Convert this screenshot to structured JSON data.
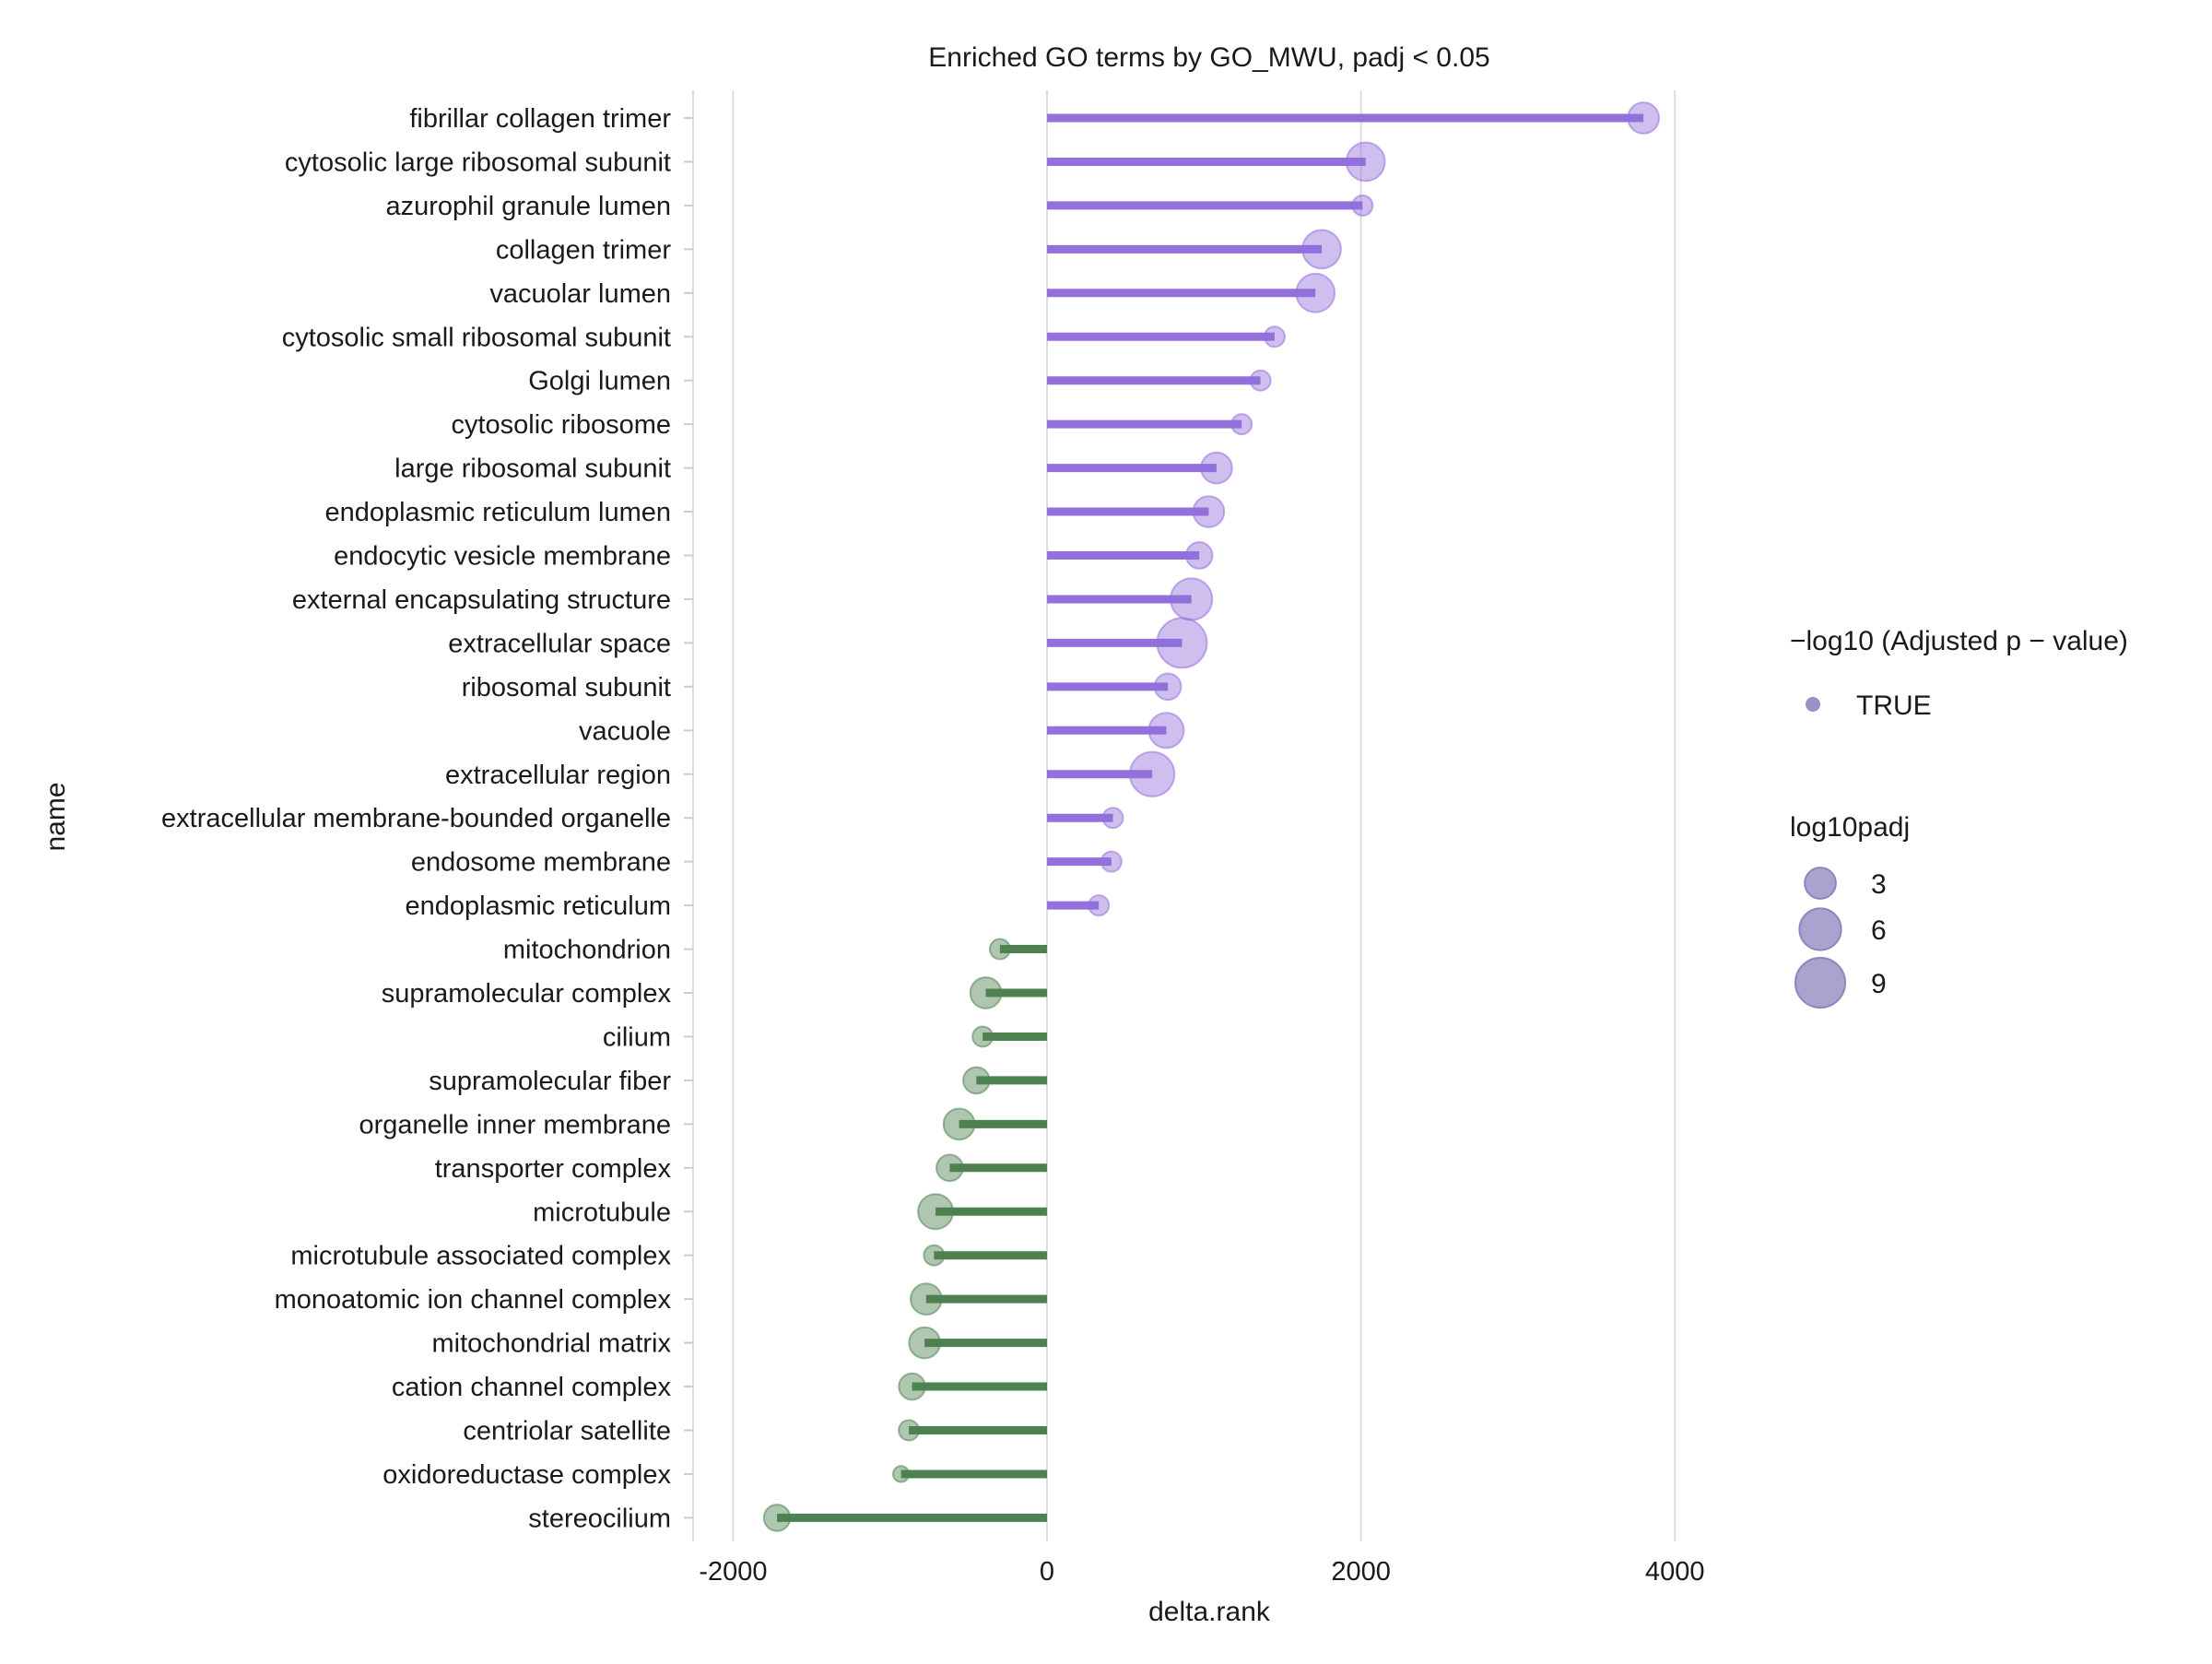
{
  "chart_data": {
    "type": "lollipop",
    "title": "Enriched GO terms by GO_MWU, padj < 0.05",
    "xlabel": "delta.rank",
    "ylabel": "name",
    "xlim": [
      -2000,
      4000
    ],
    "x_ticks": [
      -2000,
      0,
      2000,
      4000
    ],
    "x_tick_labels": [
      "-2000",
      "0",
      "2000",
      "4000"
    ],
    "grid": "vertical major lines",
    "legend_position": "right",
    "colors": {
      "positive": "#9370DB",
      "negative": "#4E8150",
      "legend_point": "#8B86BD",
      "grid": "#DCDCDC"
    },
    "legends": [
      {
        "title": "−log10 (Adjusted p − value)",
        "entries": [
          "TRUE"
        ]
      },
      {
        "title": "log10padj",
        "entries": [
          {
            "label": "3",
            "value": 3
          },
          {
            "label": "6",
            "value": 6
          },
          {
            "label": "9",
            "value": 9
          }
        ]
      }
    ],
    "categories": [
      "fibrillar collagen trimer",
      "cytosolic large ribosomal subunit",
      "azurophil granule lumen",
      "collagen trimer",
      "vacuolar lumen",
      "cytosolic small ribosomal subunit",
      "Golgi lumen",
      "cytosolic ribosome",
      "large ribosomal subunit",
      "endoplasmic reticulum lumen",
      "endocytic vesicle membrane",
      "external encapsulating structure",
      "extracellular space",
      "ribosomal subunit",
      "vacuole",
      "extracellular region",
      "extracellular membrane-bounded organelle",
      "endosome membrane",
      "endoplasmic reticulum",
      "mitochondrion",
      "supramolecular complex",
      "cilium",
      "supramolecular fiber",
      "organelle inner membrane",
      "transporter complex",
      "microtubule",
      "microtubule associated complex",
      "monoatomic ion channel complex",
      "mitochondrial matrix",
      "cation channel complex",
      "centriolar satellite",
      "oxidoreductase complex",
      "stereocilium"
    ],
    "delta_rank": [
      3800,
      2030,
      2010,
      1750,
      1710,
      1450,
      1360,
      1240,
      1080,
      1030,
      970,
      920,
      860,
      770,
      760,
      670,
      420,
      410,
      330,
      -300,
      -390,
      -410,
      -450,
      -560,
      -620,
      -710,
      -720,
      -770,
      -780,
      -860,
      -880,
      -930,
      -1720
    ],
    "log10padj": [
      3,
      5,
      1,
      5,
      5,
      1,
      1,
      1,
      3,
      3,
      2,
      6,
      9,
      2,
      4,
      7,
      1,
      1,
      1,
      1,
      3,
      1,
      2,
      3,
      2,
      4,
      1,
      3,
      3,
      2,
      1,
      0.5,
      2
    ]
  }
}
